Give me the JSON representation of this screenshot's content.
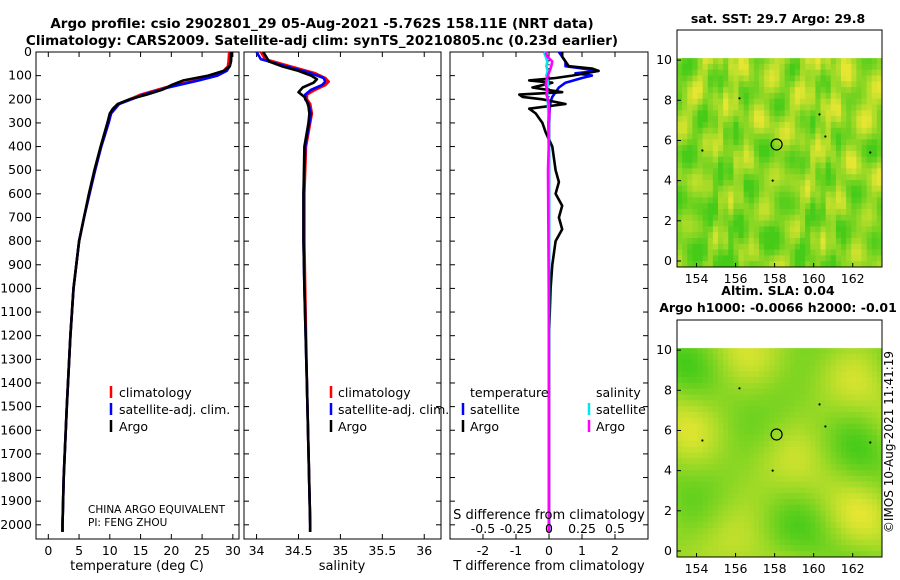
{
  "title_line1": "Argo profile: csio 2902801_29 05-Aug-2021 -5.762S 158.11E (NRT data)",
  "title_line2": "Climatology: CARS2009. Satellite-adj clim: synTS_20210805.nc (0.23d earlier)",
  "colors": {
    "clim": "#ff0000",
    "sat": "#0000ff",
    "argo": "#000000",
    "sat_s": "#00e5ee",
    "argo_s": "#ff00ff"
  },
  "chart_data": [
    {
      "type": "line",
      "id": "temperature",
      "xlabel": "temperature (deg C)",
      "xlim": [
        -2,
        31
      ],
      "ylim": [
        2060,
        0
      ],
      "xticks": [
        0,
        5,
        10,
        15,
        20,
        25,
        30
      ],
      "yticks": [
        0,
        100,
        200,
        300,
        400,
        500,
        600,
        700,
        800,
        900,
        1000,
        1100,
        1200,
        1300,
        1400,
        1500,
        1600,
        1700,
        1800,
        1900,
        2000
      ],
      "legend": [
        "climatology",
        "satellite-adj. clim.",
        "Argo"
      ],
      "annotation": [
        "CHINA ARGO EQUIVALENT",
        "PI: FENG ZHOU"
      ],
      "series": [
        {
          "name": "climatology",
          "color": "clim",
          "depth": [
            0,
            40,
            60,
            80,
            100,
            120,
            150,
            180,
            220,
            260,
            300,
            400,
            500,
            600,
            700,
            800,
            1000,
            1200,
            1500,
            1800,
            2000,
            2030
          ],
          "values": [
            29.4,
            29.3,
            29.2,
            28.5,
            27,
            24,
            19,
            15,
            11.5,
            10.2,
            9.8,
            8.6,
            7.6,
            6.7,
            5.8,
            5,
            4.1,
            3.6,
            3,
            2.5,
            2.3,
            2.3
          ]
        },
        {
          "name": "satellite-adj. clim.",
          "color": "sat",
          "depth": [
            0,
            40,
            60,
            80,
            100,
            120,
            150,
            180,
            220,
            260,
            300,
            400,
            500,
            600,
            700,
            800,
            1000,
            1200,
            1500,
            1800,
            2000,
            2030
          ],
          "values": [
            29.7,
            29.6,
            29.5,
            29,
            27.5,
            24.5,
            19.5,
            15.5,
            11.5,
            10.2,
            9.8,
            8.6,
            7.6,
            6.7,
            5.8,
            5,
            4.1,
            3.6,
            3,
            2.5,
            2.3,
            2.3
          ]
        },
        {
          "name": "Argo",
          "color": "argo",
          "depth": [
            0,
            40,
            60,
            80,
            100,
            120,
            140,
            160,
            180,
            200,
            220,
            240,
            260,
            300,
            400,
            500,
            600,
            700,
            800,
            1000,
            1200,
            1500,
            1800,
            2000,
            2030
          ],
          "values": [
            29.8,
            29.7,
            29.5,
            28.5,
            26,
            22,
            20,
            18.5,
            16,
            13.2,
            11.3,
            10.5,
            10,
            9.6,
            8.5,
            7.5,
            6.6,
            5.8,
            5,
            4.1,
            3.6,
            3,
            2.5,
            2.3,
            2.3
          ]
        }
      ]
    },
    {
      "type": "line",
      "id": "salinity",
      "xlabel": "salinity",
      "xlim": [
        33.85,
        36.2
      ],
      "ylim": [
        2060,
        0
      ],
      "xticks": [
        34,
        34.5,
        35,
        35.5,
        36
      ],
      "legend": [
        "climatology",
        "satellite-adj. clim.",
        "Argo"
      ],
      "series": [
        {
          "name": "climatology",
          "color": "clim",
          "depth": [
            0,
            30,
            60,
            90,
            110,
            125,
            140,
            160,
            180,
            200,
            220,
            260,
            300,
            400,
            600,
            800,
            1000,
            1400,
            2000,
            2030
          ],
          "values": [
            34.05,
            34.1,
            34.4,
            34.7,
            34.82,
            34.86,
            34.82,
            34.7,
            34.6,
            34.6,
            34.64,
            34.66,
            34.64,
            34.59,
            34.57,
            34.57,
            34.58,
            34.6,
            34.64,
            34.64
          ]
        },
        {
          "name": "satellite-adj. clim.",
          "color": "sat",
          "depth": [
            0,
            30,
            60,
            90,
            110,
            125,
            140,
            160,
            180,
            200,
            220,
            260,
            300,
            400,
            600,
            800,
            1000,
            1400,
            2000,
            2030
          ],
          "values": [
            34,
            34.05,
            34.35,
            34.65,
            34.8,
            34.82,
            34.78,
            34.65,
            34.58,
            34.58,
            34.62,
            34.65,
            34.63,
            34.58,
            34.56,
            34.56,
            34.57,
            34.6,
            34.64,
            34.64
          ]
        },
        {
          "name": "Argo",
          "color": "argo",
          "depth": [
            0,
            40,
            60,
            80,
            100,
            115,
            130,
            150,
            170,
            190,
            210,
            230,
            260,
            300,
            400,
            600,
            800,
            1000,
            1400,
            2000,
            2030
          ],
          "values": [
            34.08,
            34.15,
            34.3,
            34.5,
            34.65,
            34.72,
            34.68,
            34.55,
            34.5,
            34.57,
            34.6,
            34.62,
            34.63,
            34.62,
            34.57,
            34.56,
            34.56,
            34.57,
            34.6,
            34.64,
            34.64
          ]
        }
      ]
    },
    {
      "type": "line",
      "id": "differences",
      "xlabel": "T difference from climatology",
      "top_label": "S difference from climatology",
      "xlim": [
        -3,
        3
      ],
      "ylim": [
        2060,
        0
      ],
      "xticks": [
        -2,
        -1,
        0,
        1,
        2
      ],
      "top_ticks": [
        "-0.5",
        "-0.25",
        "0",
        "0.25",
        "0.5"
      ],
      "legend_t": {
        "title": "temperature",
        "items": [
          "satellite",
          "Argo"
        ]
      },
      "legend_s": {
        "title": "salinity",
        "items": [
          "satellite",
          "Argo"
        ]
      },
      "series": [
        {
          "name": "T satellite",
          "color": "sat",
          "depth": [
            0,
            20,
            40,
            60,
            70,
            80,
            90,
            100,
            110,
            130,
            150,
            170,
            190,
            210,
            240,
            300,
            500,
            1000,
            1500,
            2030
          ],
          "values": [
            0.3,
            0.4,
            0.5,
            0.5,
            1.0,
            1.5,
            0.8,
            1.3,
            1.0,
            0.5,
            0.3,
            0.2,
            0.1,
            0.05,
            0.02,
            0,
            0,
            0,
            0,
            0
          ]
        },
        {
          "name": "T Argo",
          "color": "argo",
          "depth": [
            0,
            20,
            40,
            60,
            70,
            80,
            90,
            100,
            110,
            120,
            130,
            150,
            170,
            180,
            190,
            200,
            220,
            240,
            260,
            280,
            300,
            340,
            400,
            500,
            550,
            600,
            650,
            700,
            750,
            800,
            900,
            1000,
            1200,
            1500,
            1800,
            2030
          ],
          "values": [
            0.4,
            0.4,
            0.5,
            0.6,
            1.3,
            1.5,
            1.1,
            0.7,
            0.2,
            -0.6,
            0.1,
            -0.5,
            0.4,
            -0.9,
            -0.8,
            -0.2,
            0.5,
            -0.6,
            -0.4,
            -0.3,
            -0.2,
            -0.1,
            0.1,
            0.2,
            0.3,
            0.2,
            0.4,
            0.3,
            0.4,
            0.2,
            0.1,
            0.05,
            0,
            0,
            0,
            0
          ]
        },
        {
          "name": "S satellite",
          "color": "sat_s",
          "depth": [
            0,
            20,
            40,
            60,
            80,
            100,
            130,
            160,
            200,
            260,
            340,
            400,
            500,
            1000,
            1500,
            2030
          ],
          "values": [
            -0.15,
            -0.1,
            -0.05,
            -0.08,
            -0.04,
            -0.08,
            -0.03,
            -0.06,
            -0.04,
            -0.02,
            -0.01,
            0,
            0,
            0,
            0,
            0
          ]
        },
        {
          "name": "S Argo",
          "color": "argo_s",
          "depth": [
            0,
            20,
            40,
            60,
            80,
            100,
            120,
            140,
            160,
            180,
            200,
            230,
            260,
            300,
            400,
            500,
            700,
            1000,
            1500,
            2030
          ],
          "values": [
            -0.1,
            -0.05,
            0.1,
            0.07,
            0.02,
            -0.03,
            -0.08,
            -0.1,
            -0.05,
            -0.08,
            -0.03,
            0,
            0.01,
            -0.02,
            -0.01,
            -0.03,
            -0.02,
            -0.01,
            0,
            0
          ]
        }
      ]
    },
    {
      "type": "heatmap",
      "id": "sst_map",
      "title": "sat. SST: 29.7 Argo: 29.8",
      "xlim": [
        153,
        163.5
      ],
      "ylim": [
        -0.3,
        11.5
      ],
      "xticks": [
        154,
        156,
        158,
        160,
        162
      ],
      "yticks": [
        0,
        2,
        4,
        6,
        8,
        10
      ],
      "data_top": 10.1,
      "marker": [
        158.1,
        5.8
      ]
    },
    {
      "type": "heatmap",
      "id": "sla_map",
      "title": "Altim. SLA: 0.04",
      "subtitle": "Argo h1000: -0.0066 h2000: -0.01",
      "xlim": [
        153,
        163.5
      ],
      "ylim": [
        -0.3,
        11.5
      ],
      "xticks": [
        154,
        156,
        158,
        160,
        162
      ],
      "yticks": [
        0,
        2,
        4,
        6,
        8,
        10
      ],
      "data_top": 10.1,
      "marker": [
        158.1,
        5.8
      ]
    }
  ],
  "footer_stamp": "©IMOS 10-Aug-2021 11:41:19"
}
